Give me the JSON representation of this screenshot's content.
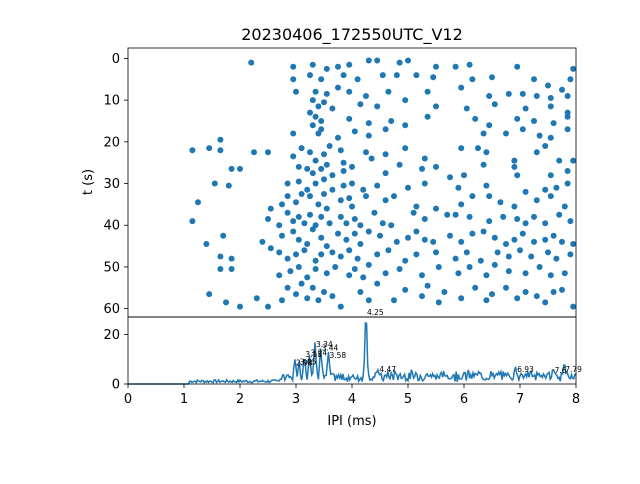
{
  "chart_data": [
    {
      "type": "scatter",
      "title": "20230406_172550UTC_V12",
      "xlabel": "",
      "ylabel": "t (s)",
      "xlim": [
        0,
        8
      ],
      "ylim": [
        62,
        -2.5
      ],
      "y_inverted": true,
      "yticks": [
        "0",
        "10",
        "20",
        "30",
        "40",
        "50",
        "60"
      ],
      "marker_color": "#1f77b4",
      "points": [
        [
          2.2,
          1
        ],
        [
          2.95,
          2
        ],
        [
          3.3,
          1.5
        ],
        [
          3.55,
          2.5
        ],
        [
          3.75,
          2
        ],
        [
          3.95,
          1.5
        ],
        [
          4.3,
          0.5
        ],
        [
          4.45,
          0.5
        ],
        [
          4.85,
          1
        ],
        [
          5.0,
          0.5
        ],
        [
          5.5,
          2
        ],
        [
          5.85,
          2
        ],
        [
          6.1,
          1.5
        ],
        [
          6.95,
          2
        ],
        [
          7.95,
          2.5
        ],
        [
          2.95,
          5
        ],
        [
          3.25,
          4
        ],
        [
          3.45,
          5
        ],
        [
          3.85,
          4
        ],
        [
          4.1,
          5
        ],
        [
          4.55,
          4
        ],
        [
          4.8,
          4
        ],
        [
          5.15,
          4
        ],
        [
          5.45,
          4.5
        ],
        [
          6.15,
          5
        ],
        [
          6.5,
          4.5
        ],
        [
          7.25,
          5
        ],
        [
          7.5,
          6.5
        ],
        [
          7.75,
          7.5
        ],
        [
          7.9,
          5
        ],
        [
          3.0,
          8
        ],
        [
          3.35,
          8
        ],
        [
          3.55,
          8.5
        ],
        [
          3.75,
          7
        ],
        [
          3.95,
          8
        ],
        [
          4.25,
          9
        ],
        [
          4.65,
          8
        ],
        [
          5.35,
          8
        ],
        [
          5.95,
          7
        ],
        [
          6.45,
          9
        ],
        [
          6.8,
          8.5
        ],
        [
          7.05,
          8.5
        ],
        [
          7.3,
          9
        ],
        [
          7.55,
          9.5
        ],
        [
          7.85,
          9
        ],
        [
          3.3,
          10
        ],
        [
          3.4,
          11.5
        ],
        [
          3.5,
          10.5
        ],
        [
          3.65,
          12
        ],
        [
          4.15,
          11
        ],
        [
          4.45,
          11.5
        ],
        [
          4.95,
          10
        ],
        [
          5.5,
          11.5
        ],
        [
          6.05,
          12
        ],
        [
          6.55,
          11
        ],
        [
          7.1,
          12
        ],
        [
          7.55,
          11.5
        ],
        [
          7.85,
          13
        ],
        [
          3.25,
          13
        ],
        [
          3.35,
          14
        ],
        [
          3.45,
          15
        ],
        [
          3.3,
          16
        ],
        [
          3.45,
          17
        ],
        [
          3.95,
          14.5
        ],
        [
          4.3,
          15.5
        ],
        [
          4.7,
          15
        ],
        [
          4.95,
          16
        ],
        [
          5.35,
          14
        ],
        [
          6.2,
          14.5
        ],
        [
          6.45,
          16
        ],
        [
          6.95,
          14.5
        ],
        [
          7.25,
          15
        ],
        [
          7.6,
          15.5
        ],
        [
          7.85,
          14
        ],
        [
          2.95,
          18
        ],
        [
          3.4,
          18
        ],
        [
          3.75,
          19
        ],
        [
          4.05,
          17.5
        ],
        [
          4.3,
          18.5
        ],
        [
          4.6,
          17
        ],
        [
          6.35,
          18
        ],
        [
          6.75,
          18
        ],
        [
          7.05,
          17
        ],
        [
          7.35,
          18.5
        ],
        [
          7.55,
          19
        ],
        [
          7.85,
          17
        ],
        [
          1.65,
          19.5
        ],
        [
          1.45,
          21.5
        ],
        [
          1.15,
          22
        ],
        [
          1.65,
          22
        ],
        [
          2.25,
          22.5
        ],
        [
          2.5,
          22.5
        ],
        [
          2.95,
          23.5
        ],
        [
          3.1,
          21.5
        ],
        [
          3.25,
          22.5
        ],
        [
          3.35,
          24.5
        ],
        [
          3.5,
          23
        ],
        [
          3.6,
          21
        ],
        [
          3.8,
          22
        ],
        [
          3.85,
          25
        ],
        [
          4.25,
          22.5
        ],
        [
          4.35,
          24
        ],
        [
          4.6,
          23
        ],
        [
          4.95,
          21.5
        ],
        [
          5.3,
          24
        ],
        [
          5.95,
          21.5
        ],
        [
          6.25,
          21.5
        ],
        [
          6.4,
          22.5
        ],
        [
          6.9,
          24.5
        ],
        [
          7.3,
          22.5
        ],
        [
          7.45,
          21
        ],
        [
          7.7,
          24.5
        ],
        [
          7.95,
          24.5
        ],
        [
          1.85,
          26.5
        ],
        [
          2.0,
          26.5
        ],
        [
          3.05,
          26
        ],
        [
          3.2,
          26.5
        ],
        [
          3.3,
          27.5
        ],
        [
          3.45,
          26.5
        ],
        [
          3.55,
          25.5
        ],
        [
          3.65,
          28
        ],
        [
          3.85,
          27
        ],
        [
          4.0,
          26
        ],
        [
          4.6,
          27.5
        ],
        [
          4.85,
          25.5
        ],
        [
          5.25,
          26.5
        ],
        [
          5.5,
          26
        ],
        [
          5.75,
          28.5
        ],
        [
          6.0,
          28
        ],
        [
          6.35,
          25.5
        ],
        [
          6.9,
          26
        ],
        [
          6.95,
          28
        ],
        [
          7.55,
          28
        ],
        [
          7.85,
          27
        ],
        [
          1.55,
          30
        ],
        [
          1.8,
          30.5
        ],
        [
          2.85,
          30
        ],
        [
          3.05,
          29.5
        ],
        [
          3.2,
          31.5
        ],
        [
          3.35,
          30
        ],
        [
          3.5,
          29
        ],
        [
          3.65,
          31.5
        ],
        [
          3.85,
          30.5
        ],
        [
          4.0,
          30
        ],
        [
          4.2,
          31.5
        ],
        [
          4.45,
          30.5
        ],
        [
          5.0,
          31
        ],
        [
          5.3,
          30
        ],
        [
          5.9,
          31
        ],
        [
          6.4,
          30.5
        ],
        [
          7.1,
          32
        ],
        [
          7.45,
          31.5
        ],
        [
          7.65,
          31
        ],
        [
          7.85,
          30
        ],
        [
          1.25,
          34.5
        ],
        [
          2.55,
          36
        ],
        [
          2.75,
          35
        ],
        [
          2.85,
          33
        ],
        [
          3.0,
          34.5
        ],
        [
          3.1,
          32.5
        ],
        [
          3.25,
          33
        ],
        [
          3.4,
          35
        ],
        [
          3.5,
          32.5
        ],
        [
          3.55,
          36
        ],
        [
          3.8,
          34
        ],
        [
          3.95,
          33.5
        ],
        [
          4.0,
          35.5
        ],
        [
          4.25,
          33
        ],
        [
          4.6,
          34
        ],
        [
          4.75,
          33
        ],
        [
          5.15,
          35.5
        ],
        [
          5.5,
          36
        ],
        [
          5.95,
          35
        ],
        [
          6.15,
          33
        ],
        [
          6.45,
          33
        ],
        [
          6.65,
          34.5
        ],
        [
          6.9,
          35.5
        ],
        [
          7.3,
          34
        ],
        [
          7.55,
          33
        ],
        [
          7.8,
          35.5
        ],
        [
          1.15,
          39
        ],
        [
          2.5,
          38.5
        ],
        [
          2.7,
          40
        ],
        [
          2.85,
          37
        ],
        [
          2.95,
          39
        ],
        [
          3.05,
          38
        ],
        [
          3.15,
          39.5
        ],
        [
          3.25,
          37.5
        ],
        [
          3.35,
          40
        ],
        [
          3.45,
          38
        ],
        [
          3.6,
          39.5
        ],
        [
          3.8,
          38
        ],
        [
          3.9,
          39.5
        ],
        [
          4.05,
          38.5
        ],
        [
          4.15,
          40
        ],
        [
          4.4,
          37
        ],
        [
          4.55,
          39.5
        ],
        [
          4.7,
          40
        ],
        [
          5.1,
          37
        ],
        [
          5.3,
          38.5
        ],
        [
          5.7,
          37.5
        ],
        [
          5.85,
          37.5
        ],
        [
          6.1,
          38
        ],
        [
          6.45,
          39
        ],
        [
          6.7,
          38
        ],
        [
          6.95,
          38.5
        ],
        [
          7.1,
          39.5
        ],
        [
          7.25,
          38
        ],
        [
          7.45,
          39.5
        ],
        [
          7.7,
          37.5
        ],
        [
          7.9,
          39
        ],
        [
          1.4,
          44.5
        ],
        [
          1.7,
          42.5
        ],
        [
          2.4,
          44
        ],
        [
          2.55,
          45.5
        ],
        [
          2.75,
          42.5
        ],
        [
          2.95,
          41.5
        ],
        [
          3.05,
          43.5
        ],
        [
          3.2,
          44.5
        ],
        [
          3.3,
          41
        ],
        [
          3.45,
          43
        ],
        [
          3.55,
          45
        ],
        [
          3.75,
          42
        ],
        [
          3.9,
          43.5
        ],
        [
          4.05,
          42
        ],
        [
          4.15,
          44.5
        ],
        [
          4.3,
          41.5
        ],
        [
          4.5,
          42.5
        ],
        [
          4.8,
          44
        ],
        [
          5.0,
          43
        ],
        [
          5.15,
          41.5
        ],
        [
          5.3,
          43.5
        ],
        [
          5.45,
          44
        ],
        [
          5.75,
          42.5
        ],
        [
          5.95,
          44
        ],
        [
          6.15,
          42
        ],
        [
          6.35,
          41.5
        ],
        [
          6.55,
          43
        ],
        [
          6.75,
          44.5
        ],
        [
          6.9,
          43.5
        ],
        [
          7.05,
          42
        ],
        [
          7.25,
          44
        ],
        [
          7.45,
          43.5
        ],
        [
          7.6,
          42.5
        ],
        [
          7.75,
          44
        ],
        [
          7.95,
          44.5
        ],
        [
          1.65,
          47.5
        ],
        [
          1.85,
          48
        ],
        [
          2.7,
          46.5
        ],
        [
          2.85,
          48
        ],
        [
          3.0,
          47
        ],
        [
          3.15,
          46
        ],
        [
          3.35,
          48.5
        ],
        [
          3.45,
          47
        ],
        [
          3.65,
          46.5
        ],
        [
          3.8,
          47.5
        ],
        [
          3.95,
          46
        ],
        [
          4.1,
          48
        ],
        [
          4.45,
          47
        ],
        [
          4.65,
          46
        ],
        [
          4.95,
          48.5
        ],
        [
          5.15,
          47
        ],
        [
          5.5,
          46.5
        ],
        [
          5.85,
          48
        ],
        [
          6.05,
          46.5
        ],
        [
          6.3,
          48.5
        ],
        [
          6.6,
          46.5
        ],
        [
          6.8,
          47.5
        ],
        [
          7.0,
          46
        ],
        [
          7.2,
          47.5
        ],
        [
          7.5,
          46.5
        ],
        [
          7.65,
          48
        ],
        [
          7.9,
          47
        ],
        [
          1.65,
          50.5
        ],
        [
          1.85,
          50.5
        ],
        [
          2.7,
          52
        ],
        [
          2.9,
          51
        ],
        [
          3.05,
          50
        ],
        [
          3.2,
          52.5
        ],
        [
          3.35,
          50.5
        ],
        [
          3.55,
          51.5
        ],
        [
          3.7,
          50
        ],
        [
          3.95,
          52
        ],
        [
          4.05,
          50.5
        ],
        [
          4.2,
          52.5
        ],
        [
          4.3,
          49.5
        ],
        [
          4.6,
          51.5
        ],
        [
          4.85,
          50.5
        ],
        [
          5.25,
          52
        ],
        [
          5.55,
          50
        ],
        [
          5.9,
          51.5
        ],
        [
          6.1,
          50
        ],
        [
          6.4,
          52
        ],
        [
          6.55,
          49.5
        ],
        [
          6.8,
          51
        ],
        [
          7.1,
          51.5
        ],
        [
          7.35,
          50
        ],
        [
          7.55,
          52
        ],
        [
          7.8,
          51.5
        ],
        [
          1.45,
          56.5
        ],
        [
          1.75,
          58.5
        ],
        [
          2.0,
          59.5
        ],
        [
          2.3,
          57.5
        ],
        [
          2.5,
          59.5
        ],
        [
          2.75,
          58
        ],
        [
          2.85,
          55
        ],
        [
          3.0,
          56.5
        ],
        [
          3.1,
          54
        ],
        [
          3.2,
          57.5
        ],
        [
          3.3,
          55
        ],
        [
          3.4,
          58
        ],
        [
          3.5,
          56
        ],
        [
          3.65,
          57
        ],
        [
          3.8,
          59.5
        ],
        [
          4.15,
          56
        ],
        [
          4.3,
          58
        ],
        [
          4.45,
          54
        ],
        [
          4.75,
          58
        ],
        [
          4.95,
          55.5
        ],
        [
          5.25,
          57
        ],
        [
          5.35,
          54.5
        ],
        [
          5.55,
          58.5
        ],
        [
          5.65,
          56
        ],
        [
          5.95,
          57.5
        ],
        [
          6.2,
          55
        ],
        [
          6.4,
          58
        ],
        [
          6.5,
          56.5
        ],
        [
          6.75,
          55
        ],
        [
          6.95,
          57.5
        ],
        [
          7.1,
          56
        ],
        [
          7.3,
          57
        ],
        [
          7.45,
          58.5
        ],
        [
          7.6,
          56
        ],
        [
          7.75,
          55.5
        ],
        [
          7.95,
          59.5
        ]
      ]
    },
    {
      "type": "line",
      "xlabel": "IPI (ms)",
      "ylabel": "",
      "xlim": [
        0,
        8
      ],
      "ylim": [
        0,
        27
      ],
      "yticks": [
        "0",
        "20"
      ],
      "xticks": [
        "0",
        "1",
        "2",
        "3",
        "4",
        "5",
        "6",
        "7",
        "8"
      ],
      "line_color": "#1f77b4",
      "peaks": [
        {
          "x": 4.25,
          "y": 27.5,
          "label": "4.25"
        },
        {
          "x": 2.98,
          "y": 7,
          "label": "2.98"
        },
        {
          "x": 3.05,
          "y": 7.5,
          "label": "3.05"
        },
        {
          "x": 3.15,
          "y": 10.5,
          "label": "3.15"
        },
        {
          "x": 3.24,
          "y": 11,
          "label": "3.24"
        },
        {
          "x": 3.34,
          "y": 14.5,
          "label": "3.34"
        },
        {
          "x": 3.44,
          "y": 13,
          "label": "3.44"
        },
        {
          "x": 3.58,
          "y": 10,
          "label": "3.58"
        },
        {
          "x": 4.47,
          "y": 4.5,
          "label": "4.47"
        },
        {
          "x": 6.93,
          "y": 4.5,
          "label": "6.93"
        },
        {
          "x": 7.6,
          "y": 4,
          "label": "7.6"
        },
        {
          "x": 7.79,
          "y": 4.5,
          "label": "7.79"
        }
      ]
    }
  ]
}
